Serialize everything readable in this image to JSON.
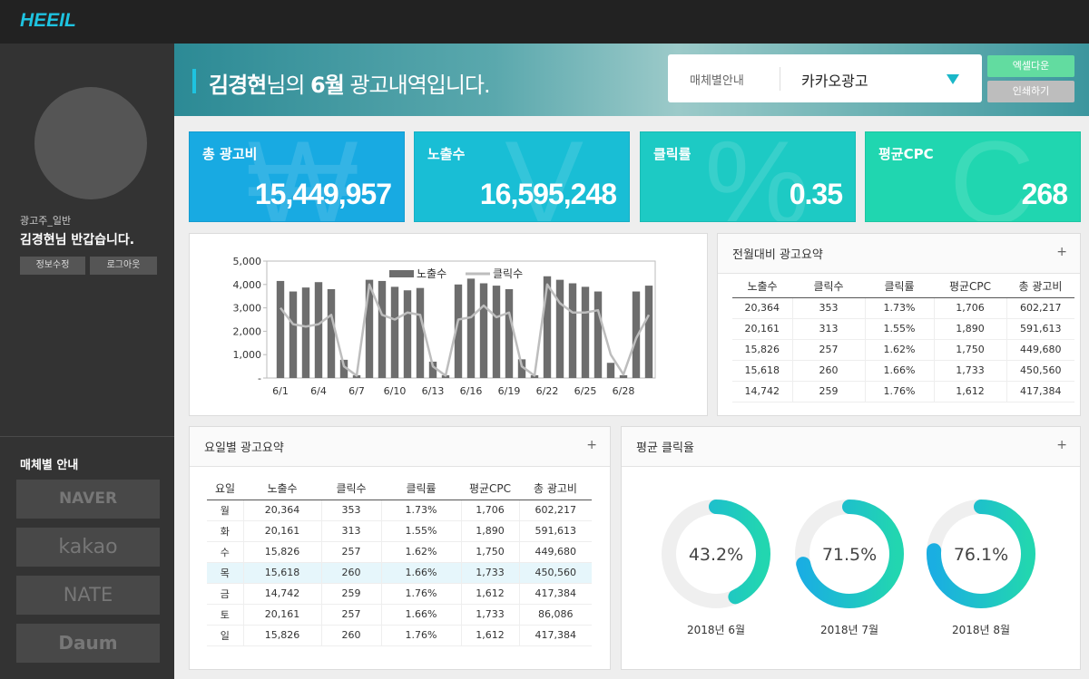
{
  "header": {
    "logo": "HEEIL",
    "title": {
      "name": "김경현",
      "mid": "님의 ",
      "month": "6월",
      "rest": " 광고내역입니다."
    },
    "media_label": "매체별안내",
    "media_value": "카카오광고",
    "buttons": [
      "엑셀다운",
      "인쇄하기"
    ]
  },
  "sidebar": {
    "role": "광고주_일반",
    "greeting": "김경현님 반갑습니다.",
    "buttons": [
      "정보수정",
      "로그아웃"
    ],
    "media_title": "매체별 안내",
    "media": [
      "NAVER",
      "kakao",
      "NATE",
      "Daum"
    ]
  },
  "kpis": [
    {
      "label": "총 광고비",
      "value": "15,449,957",
      "icon": "₩",
      "color": "#18aae2"
    },
    {
      "label": "노출수",
      "value": "16,595,248",
      "icon": "V",
      "color": "#19bed5"
    },
    {
      "label": "클릭률",
      "value": "0.35",
      "icon": "%",
      "color": "#1dcac4"
    },
    {
      "label": "평균CPC",
      "value": "268",
      "icon": "C",
      "color": "#20d6b0"
    }
  ],
  "chart_data": [
    {
      "type": "bar",
      "categories": [
        "6/1",
        null,
        null,
        "6/4",
        null,
        null,
        "6/7",
        null,
        null,
        "6/10",
        null,
        null,
        "6/13",
        null,
        null,
        "6/16",
        null,
        null,
        "6/19",
        null,
        null,
        "6/22",
        null,
        null,
        "6/25",
        null,
        null,
        "6/28",
        null,
        null
      ],
      "series": [
        {
          "name": "노출수",
          "type": "bar",
          "color": "#6d6d6d",
          "values": [
            4150,
            3700,
            3870,
            4100,
            3800,
            780,
            120,
            4200,
            4150,
            3900,
            3750,
            3850,
            700,
            120,
            4000,
            4250,
            4050,
            3950,
            3800,
            800,
            120,
            4350,
            4200,
            4050,
            3900,
            3700,
            650,
            120,
            3700,
            3950
          ]
        },
        {
          "name": "클릭수",
          "type": "line",
          "color": "#bdbdbd",
          "values": [
            3000,
            2300,
            2200,
            2300,
            2700,
            500,
            100,
            4000,
            2700,
            2500,
            2800,
            2700,
            500,
            100,
            2500,
            2600,
            3100,
            2600,
            2800,
            500,
            100,
            4000,
            3200,
            2800,
            2800,
            2900,
            1000,
            150,
            1700,
            2700
          ]
        }
      ],
      "ylim": [
        0,
        5000
      ],
      "yticks": [
        {
          "value": 0,
          "label": "-"
        },
        {
          "value": 1000,
          "label": "1,000"
        },
        {
          "value": 2000,
          "label": "2,000"
        },
        {
          "value": 3000,
          "label": "3,000"
        },
        {
          "value": 4000,
          "label": "4,000"
        },
        {
          "value": 5000,
          "label": "5,000"
        }
      ],
      "grid": false,
      "legend": "top"
    },
    {
      "type": "donut",
      "title": "평균 클릭율",
      "more": "+",
      "categories": [
        "2018년 6월",
        "2018년 7월",
        "2018년 8월"
      ],
      "values": [
        43.2,
        71.5,
        76.1
      ],
      "value_labels": [
        "43.2%",
        "71.5%",
        "76.1%"
      ],
      "ylim": [
        0,
        100
      ],
      "colors": [
        "#1aaee2",
        "#22d6b0"
      ],
      "track": "#efefef"
    }
  ],
  "monthly_table": {
    "title": "전월대비 광고요약",
    "more": "+",
    "columns": [
      "노출수",
      "클릭수",
      "클릭률",
      "평균CPC",
      "총 광고비"
    ],
    "rows": [
      [
        "20,364",
        "353",
        "1.73%",
        "1,706",
        "602,217"
      ],
      [
        "20,161",
        "313",
        "1.55%",
        "1,890",
        "591,613"
      ],
      [
        "15,826",
        "257",
        "1.62%",
        "1,750",
        "449,680"
      ],
      [
        "15,618",
        "260",
        "1.66%",
        "1,733",
        "450,560"
      ],
      [
        "14,742",
        "259",
        "1.76%",
        "1,612",
        "417,384"
      ]
    ]
  },
  "daily_table": {
    "title": "요일별 광고요약",
    "more": "+",
    "columns": [
      "요일",
      "노출수",
      "클릭수",
      "클릭률",
      "평균CPC",
      "총 광고비"
    ],
    "highlight_row": 3,
    "rows": [
      [
        "월",
        "20,364",
        "353",
        "1.73%",
        "1,706",
        "602,217"
      ],
      [
        "화",
        "20,161",
        "313",
        "1.55%",
        "1,890",
        "591,613"
      ],
      [
        "수",
        "15,826",
        "257",
        "1.62%",
        "1,750",
        "449,680"
      ],
      [
        "목",
        "15,618",
        "260",
        "1.66%",
        "1,733",
        "450,560"
      ],
      [
        "금",
        "14,742",
        "259",
        "1.76%",
        "1,612",
        "417,384"
      ],
      [
        "토",
        "20,161",
        "257",
        "1.66%",
        "1,733",
        "86,086"
      ],
      [
        "일",
        "15,826",
        "260",
        "1.76%",
        "1,612",
        "417,384"
      ]
    ]
  }
}
